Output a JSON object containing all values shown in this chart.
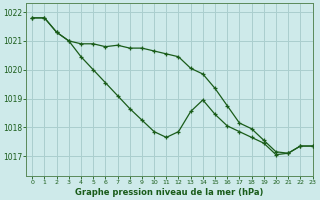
{
  "title": "Graphe pression niveau de la mer (hPa)",
  "bg_color": "#ceeaea",
  "grid_color": "#aacece",
  "line_color": "#1a5c1a",
  "marker_color": "#1a5c1a",
  "xlim": [
    -0.5,
    23
  ],
  "ylim": [
    1016.3,
    1022.3
  ],
  "yticks": [
    1017,
    1018,
    1019,
    1020,
    1021,
    1022
  ],
  "xticks": [
    0,
    1,
    2,
    3,
    4,
    5,
    6,
    7,
    8,
    9,
    10,
    11,
    12,
    13,
    14,
    15,
    16,
    17,
    18,
    19,
    20,
    21,
    22,
    23
  ],
  "hours": [
    0,
    1,
    2,
    3,
    4,
    5,
    6,
    7,
    8,
    9,
    10,
    11,
    12,
    13,
    14,
    15,
    16,
    17,
    18,
    19,
    20,
    21,
    22,
    23
  ],
  "line1": [
    1021.8,
    1021.8,
    1021.3,
    1021.0,
    1020.9,
    1020.9,
    1020.8,
    1020.85,
    1020.75,
    1020.75,
    1020.65,
    1020.55,
    1020.45,
    1020.05,
    1019.85,
    1019.35,
    1018.75,
    1018.15,
    1017.95,
    1017.55,
    1017.15,
    1017.1,
    1017.35,
    1017.35
  ],
  "line2": [
    1021.8,
    1021.8,
    1021.3,
    1021.0,
    1020.45,
    1020.0,
    1019.55,
    1019.1,
    1018.65,
    1018.25,
    1017.85,
    1017.65,
    1017.85,
    1018.55,
    1018.95,
    1018.45,
    1018.05,
    1017.85,
    1017.65,
    1017.45,
    1017.05,
    1017.1,
    1017.35,
    1017.35
  ],
  "tick_color": "#1a5c1a",
  "axis_color": "#5a8a5a",
  "tick_fontsize": 5.5,
  "xlabel_fontsize": 6.0
}
